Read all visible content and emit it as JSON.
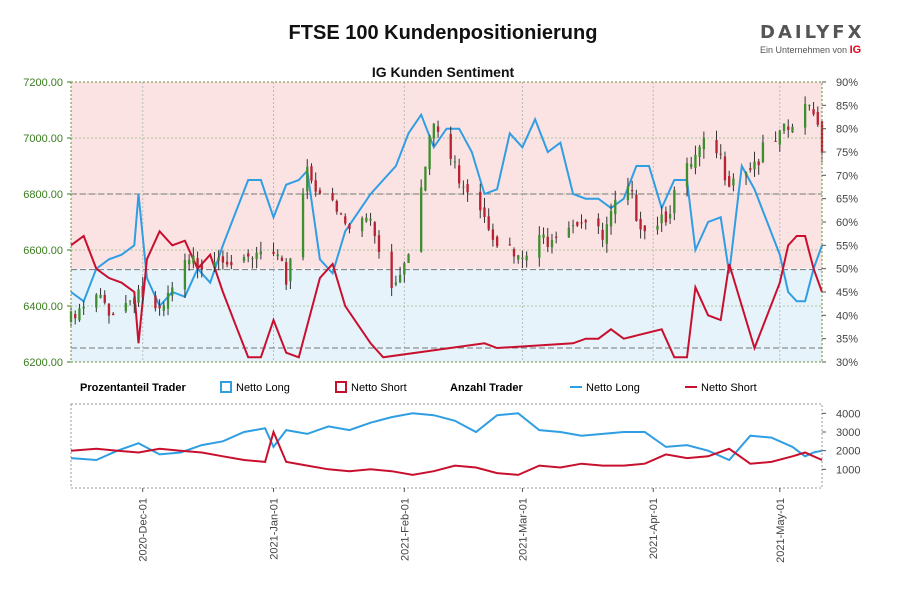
{
  "header": {
    "title": "FTSE 100 Kundenpositionierung",
    "subtitle": "IG Kunden Sentiment",
    "logo_text": "DAILYFX",
    "logo_sub": "Ein Unternehmen von",
    "logo_ig": "IG"
  },
  "colors": {
    "long": "#2f9ee3",
    "short": "#c8102e",
    "bull_candle": "#3e8e2f",
    "bear_candle": "#b82233",
    "short_zone": "#fbe3e4",
    "long_zone": "#e6f3fb",
    "price_axis_text": "#3a7d1f"
  },
  "legend": {
    "pct_label": "Prozentanteil Trader",
    "pct_long": "Netto Long",
    "pct_short": "Netto Short",
    "count_label": "Anzahl Trader",
    "count_long": "Netto Long",
    "count_short": "Netto Short"
  },
  "chart_data": {
    "type": "candlestick",
    "title": "FTSE 100 Kundenpositionierung",
    "subtitle": "IG Kunden Sentiment",
    "y_price_ticks": [
      "7200.00",
      "7000.00",
      "6800.00",
      "6600.00",
      "6400.00",
      "6200.00"
    ],
    "y_price_range": [
      6200,
      7200
    ],
    "y_pct_ticks": [
      "90%",
      "85%",
      "80%",
      "75%",
      "70%",
      "65%",
      "60%",
      "55%",
      "50%",
      "45%",
      "40%",
      "35%",
      "30%"
    ],
    "y_pct_range": [
      30,
      90
    ],
    "y_count_ticks": [
      "4000",
      "3000",
      "2000",
      "1000"
    ],
    "y_count_range": [
      0,
      4500
    ],
    "x_ticks": [
      "2020-Dec-01",
      "2021-Jan-01",
      "2021-Feb-01",
      "2021-Mar-01",
      "2021-Apr-01",
      "2021-May-01"
    ],
    "x_tick_days": [
      11,
      42,
      73,
      101,
      132,
      162
    ],
    "x_range": [
      -6,
      172
    ],
    "reference_lines_price": [
      6800,
      6530,
      6250
    ],
    "price_close_path": [
      [
        -6,
        6340
      ],
      [
        0,
        6420
      ],
      [
        5,
        6380
      ],
      [
        10,
        6460
      ],
      [
        15,
        6350
      ],
      [
        20,
        6520
      ],
      [
        25,
        6570
      ],
      [
        30,
        6600
      ],
      [
        35,
        6530
      ],
      [
        40,
        6600
      ],
      [
        45,
        6500
      ],
      [
        50,
        6900
      ],
      [
        55,
        6760
      ],
      [
        60,
        6670
      ],
      [
        65,
        6720
      ],
      [
        70,
        6470
      ],
      [
        75,
        6660
      ],
      [
        80,
        7050
      ],
      [
        85,
        6890
      ],
      [
        90,
        6800
      ],
      [
        95,
        6650
      ],
      [
        100,
        6550
      ],
      [
        105,
        6620
      ],
      [
        110,
        6700
      ],
      [
        115,
        6720
      ],
      [
        120,
        6630
      ],
      [
        125,
        6820
      ],
      [
        130,
        6690
      ],
      [
        135,
        6740
      ],
      [
        140,
        6870
      ],
      [
        145,
        6980
      ],
      [
        150,
        6870
      ],
      [
        155,
        6910
      ],
      [
        160,
        6960
      ],
      [
        165,
        7040
      ],
      [
        170,
        7120
      ],
      [
        172,
        6980
      ]
    ],
    "series": [
      {
        "name": "Netto Long",
        "kind": "percent",
        "points": [
          [
            -6,
            45
          ],
          [
            -3,
            43
          ],
          [
            0,
            50
          ],
          [
            3,
            52
          ],
          [
            6,
            53
          ],
          [
            9,
            55
          ],
          [
            10,
            66
          ],
          [
            12,
            48
          ],
          [
            15,
            42
          ],
          [
            18,
            45
          ],
          [
            21,
            44
          ],
          [
            24,
            50
          ],
          [
            27,
            47
          ],
          [
            30,
            55
          ],
          [
            33,
            62
          ],
          [
            36,
            69
          ],
          [
            39,
            69
          ],
          [
            42,
            61
          ],
          [
            45,
            68
          ],
          [
            48,
            69
          ],
          [
            50,
            71
          ],
          [
            53,
            52
          ],
          [
            56,
            49
          ],
          [
            59,
            58
          ],
          [
            62,
            62
          ],
          [
            65,
            66
          ],
          [
            68,
            69
          ],
          [
            71,
            72
          ],
          [
            74,
            79
          ],
          [
            77,
            83
          ],
          [
            80,
            76
          ],
          [
            83,
            80
          ],
          [
            86,
            80
          ],
          [
            89,
            75
          ],
          [
            92,
            66
          ],
          [
            95,
            67
          ],
          [
            98,
            79
          ],
          [
            101,
            76
          ],
          [
            104,
            82
          ],
          [
            107,
            75
          ],
          [
            110,
            77
          ],
          [
            113,
            66
          ],
          [
            116,
            65
          ],
          [
            119,
            65
          ],
          [
            122,
            63
          ],
          [
            125,
            65
          ],
          [
            128,
            72
          ],
          [
            131,
            72
          ],
          [
            134,
            63
          ],
          [
            137,
            69
          ],
          [
            140,
            69
          ],
          [
            142,
            54
          ],
          [
            145,
            60
          ],
          [
            148,
            61
          ],
          [
            150,
            49
          ],
          [
            153,
            72
          ],
          [
            156,
            67
          ],
          [
            159,
            60
          ],
          [
            162,
            53
          ],
          [
            164,
            45
          ],
          [
            166,
            43
          ],
          [
            168,
            43
          ],
          [
            170,
            50
          ],
          [
            172,
            55
          ]
        ]
      },
      {
        "name": "Netto Short",
        "kind": "percent",
        "points": [
          [
            -6,
            55
          ],
          [
            -3,
            57
          ],
          [
            0,
            50
          ],
          [
            3,
            48
          ],
          [
            6,
            47
          ],
          [
            9,
            45
          ],
          [
            10,
            34
          ],
          [
            12,
            52
          ],
          [
            15,
            58
          ],
          [
            18,
            55
          ],
          [
            21,
            56
          ],
          [
            24,
            50
          ],
          [
            27,
            53
          ],
          [
            30,
            45
          ],
          [
            33,
            38
          ],
          [
            36,
            31
          ],
          [
            39,
            31
          ],
          [
            42,
            39
          ],
          [
            45,
            32
          ],
          [
            48,
            31
          ],
          [
            50,
            29
          ],
          [
            53,
            48
          ],
          [
            56,
            51
          ],
          [
            59,
            42
          ],
          [
            62,
            38
          ],
          [
            65,
            34
          ],
          [
            68,
            31
          ],
          [
            71,
            28
          ],
          [
            74,
            21
          ],
          [
            77,
            17
          ],
          [
            80,
            24
          ],
          [
            83,
            20
          ],
          [
            86,
            20
          ],
          [
            89,
            25
          ],
          [
            92,
            34
          ],
          [
            95,
            33
          ],
          [
            98,
            21
          ],
          [
            101,
            24
          ],
          [
            104,
            18
          ],
          [
            107,
            25
          ],
          [
            110,
            23
          ],
          [
            113,
            34
          ],
          [
            116,
            35
          ],
          [
            119,
            35
          ],
          [
            122,
            37
          ],
          [
            125,
            35
          ],
          [
            128,
            28
          ],
          [
            131,
            28
          ],
          [
            134,
            37
          ],
          [
            137,
            31
          ],
          [
            140,
            31
          ],
          [
            142,
            46
          ],
          [
            145,
            40
          ],
          [
            148,
            39
          ],
          [
            150,
            51
          ],
          [
            153,
            28
          ],
          [
            156,
            33
          ],
          [
            159,
            40
          ],
          [
            162,
            47
          ],
          [
            164,
            55
          ],
          [
            166,
            57
          ],
          [
            168,
            57
          ],
          [
            170,
            50
          ],
          [
            172,
            45
          ]
        ]
      },
      {
        "name": "Netto Long",
        "kind": "count",
        "points": [
          [
            -6,
            1600
          ],
          [
            0,
            1500
          ],
          [
            5,
            2000
          ],
          [
            10,
            2400
          ],
          [
            15,
            1800
          ],
          [
            20,
            1900
          ],
          [
            25,
            2300
          ],
          [
            30,
            2500
          ],
          [
            35,
            3000
          ],
          [
            40,
            3200
          ],
          [
            42,
            2200
          ],
          [
            45,
            3100
          ],
          [
            50,
            2900
          ],
          [
            55,
            3300
          ],
          [
            60,
            3100
          ],
          [
            65,
            3500
          ],
          [
            70,
            3800
          ],
          [
            75,
            4000
          ],
          [
            80,
            3900
          ],
          [
            85,
            3600
          ],
          [
            90,
            3000
          ],
          [
            95,
            3900
          ],
          [
            100,
            4000
          ],
          [
            105,
            3100
          ],
          [
            110,
            3000
          ],
          [
            115,
            2800
          ],
          [
            120,
            2900
          ],
          [
            125,
            3000
          ],
          [
            130,
            3000
          ],
          [
            135,
            2200
          ],
          [
            140,
            2300
          ],
          [
            145,
            2000
          ],
          [
            150,
            1500
          ],
          [
            155,
            2800
          ],
          [
            160,
            2700
          ],
          [
            165,
            2200
          ],
          [
            168,
            1700
          ],
          [
            170,
            1900
          ],
          [
            172,
            2000
          ]
        ]
      },
      {
        "name": "Netto Short",
        "kind": "count",
        "points": [
          [
            -6,
            2000
          ],
          [
            0,
            2100
          ],
          [
            5,
            2000
          ],
          [
            10,
            1900
          ],
          [
            15,
            2100
          ],
          [
            20,
            2000
          ],
          [
            25,
            1900
          ],
          [
            30,
            1700
          ],
          [
            35,
            1500
          ],
          [
            40,
            1400
          ],
          [
            42,
            3000
          ],
          [
            45,
            1400
          ],
          [
            50,
            1200
          ],
          [
            55,
            1000
          ],
          [
            60,
            900
          ],
          [
            65,
            1000
          ],
          [
            70,
            900
          ],
          [
            75,
            700
          ],
          [
            80,
            900
          ],
          [
            85,
            1200
          ],
          [
            90,
            1100
          ],
          [
            95,
            800
          ],
          [
            100,
            700
          ],
          [
            105,
            1200
          ],
          [
            110,
            1100
          ],
          [
            115,
            1300
          ],
          [
            120,
            1200
          ],
          [
            125,
            1200
          ],
          [
            130,
            1300
          ],
          [
            135,
            1800
          ],
          [
            140,
            1600
          ],
          [
            145,
            1700
          ],
          [
            150,
            2100
          ],
          [
            155,
            1300
          ],
          [
            160,
            1400
          ],
          [
            165,
            1700
          ],
          [
            168,
            1900
          ],
          [
            170,
            1700
          ],
          [
            172,
            1500
          ]
        ]
      }
    ]
  }
}
